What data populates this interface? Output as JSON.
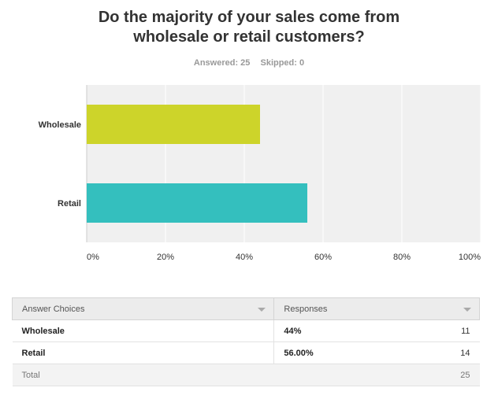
{
  "question": {
    "title_line1": "Do the majority of your sales come from",
    "title_line2": "wholesale or retail customers?",
    "answered": "Answered: 25",
    "skipped": "Skipped: 0"
  },
  "chart_data": {
    "type": "bar",
    "orientation": "horizontal",
    "categories": [
      "Wholesale",
      "Retail"
    ],
    "values": [
      44,
      56
    ],
    "xlim": [
      0,
      100
    ],
    "x_ticks": [
      "0%",
      "20%",
      "40%",
      "60%",
      "80%",
      "100%"
    ],
    "grid": true,
    "colors": [
      "#cdd42a",
      "#34bfbe"
    ]
  },
  "table": {
    "headers": [
      "Answer Choices",
      "Responses"
    ],
    "rows": [
      {
        "choice": "Wholesale",
        "percent": "44%",
        "count": "11"
      },
      {
        "choice": "Retail",
        "percent": "56.00%",
        "count": "14"
      }
    ],
    "total_label": "Total",
    "total_count": "25"
  }
}
